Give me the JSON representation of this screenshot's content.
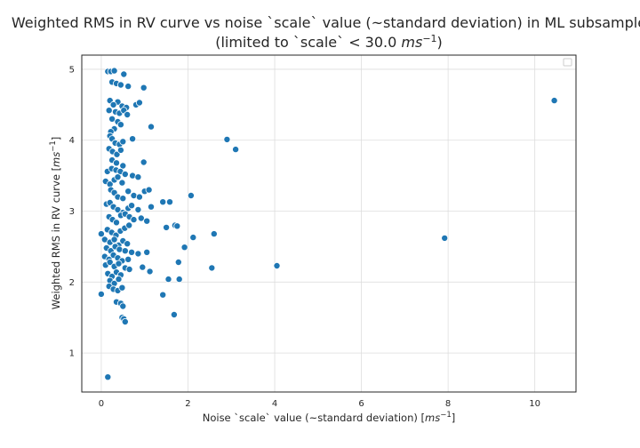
{
  "chart_data": {
    "type": "scatter",
    "title_line1": "Weighted RMS in RV curve vs noise `scale` value (~standard deviation) in ML subsample",
    "title_line2_prefix": "(limited to `scale` < 30.0 ",
    "unit": "ms",
    "unit_exp": "−1",
    "title_line2_suffix": ")",
    "xlabel": "Noise `scale` value (~standard deviation) [",
    "ylabel": "Weighted RMS in RV curve [",
    "label_close": "]",
    "xlim": [
      -0.45,
      10.95
    ],
    "ylim": [
      0.45,
      5.2
    ],
    "xticks": [
      0,
      2,
      4,
      6,
      8,
      10
    ],
    "yticks": [
      1,
      2,
      3,
      4,
      5
    ],
    "grid": true,
    "legend": "top-right (empty)",
    "color": "#1f77b4",
    "points": [
      [
        0.15,
        4.97
      ],
      [
        0.22,
        4.97
      ],
      [
        0.3,
        4.98
      ],
      [
        0.52,
        4.93
      ],
      [
        0.25,
        4.82
      ],
      [
        0.35,
        4.8
      ],
      [
        0.45,
        4.78
      ],
      [
        0.62,
        4.76
      ],
      [
        0.98,
        4.74
      ],
      [
        0.2,
        4.56
      ],
      [
        0.38,
        4.54
      ],
      [
        0.28,
        4.5
      ],
      [
        0.48,
        4.48
      ],
      [
        0.58,
        4.46
      ],
      [
        0.8,
        4.5
      ],
      [
        0.88,
        4.53
      ],
      [
        0.18,
        4.42
      ],
      [
        0.33,
        4.4
      ],
      [
        0.42,
        4.38
      ],
      [
        0.52,
        4.42
      ],
      [
        0.6,
        4.36
      ],
      [
        0.25,
        4.3
      ],
      [
        0.38,
        4.26
      ],
      [
        0.45,
        4.22
      ],
      [
        0.3,
        4.16
      ],
      [
        0.22,
        4.12
      ],
      [
        0.2,
        4.06
      ],
      [
        0.25,
        4.02
      ],
      [
        0.32,
        3.96
      ],
      [
        0.42,
        3.94
      ],
      [
        0.5,
        3.98
      ],
      [
        0.72,
        4.02
      ],
      [
        1.15,
        4.19
      ],
      [
        0.18,
        3.88
      ],
      [
        0.26,
        3.84
      ],
      [
        0.36,
        3.8
      ],
      [
        0.45,
        3.86
      ],
      [
        0.25,
        3.72
      ],
      [
        0.35,
        3.68
      ],
      [
        0.5,
        3.64
      ],
      [
        0.98,
        3.69
      ],
      [
        0.14,
        3.56
      ],
      [
        0.24,
        3.6
      ],
      [
        0.34,
        3.58
      ],
      [
        0.44,
        3.56
      ],
      [
        0.55,
        3.52
      ],
      [
        0.72,
        3.5
      ],
      [
        0.85,
        3.48
      ],
      [
        0.1,
        3.42
      ],
      [
        0.2,
        3.38
      ],
      [
        0.3,
        3.44
      ],
      [
        0.38,
        3.48
      ],
      [
        0.48,
        3.4
      ],
      [
        0.22,
        3.3
      ],
      [
        0.3,
        3.26
      ],
      [
        0.38,
        3.2
      ],
      [
        0.5,
        3.18
      ],
      [
        0.62,
        3.28
      ],
      [
        0.75,
        3.22
      ],
      [
        0.88,
        3.2
      ],
      [
        1.0,
        3.28
      ],
      [
        1.1,
        3.3
      ],
      [
        2.07,
        3.22
      ],
      [
        0.12,
        3.1
      ],
      [
        0.2,
        3.12
      ],
      [
        0.28,
        3.06
      ],
      [
        0.38,
        3.02
      ],
      [
        0.5,
        2.98
      ],
      [
        0.62,
        3.04
      ],
      [
        0.7,
        3.08
      ],
      [
        0.85,
        3.02
      ],
      [
        1.15,
        3.06
      ],
      [
        1.42,
        3.13
      ],
      [
        1.58,
        3.13
      ],
      [
        0.18,
        2.92
      ],
      [
        0.26,
        2.88
      ],
      [
        0.35,
        2.84
      ],
      [
        0.45,
        2.94
      ],
      [
        0.55,
        2.96
      ],
      [
        0.65,
        2.92
      ],
      [
        0.75,
        2.88
      ],
      [
        0.92,
        2.9
      ],
      [
        1.05,
        2.86
      ],
      [
        1.5,
        2.77
      ],
      [
        1.7,
        2.8
      ],
      [
        1.75,
        2.79
      ],
      [
        2.6,
        2.68
      ],
      [
        0.0,
        2.68
      ],
      [
        0.14,
        2.74
      ],
      [
        0.24,
        2.7
      ],
      [
        0.34,
        2.66
      ],
      [
        0.44,
        2.72
      ],
      [
        0.54,
        2.76
      ],
      [
        0.64,
        2.8
      ],
      [
        0.08,
        2.6
      ],
      [
        0.2,
        2.56
      ],
      [
        0.3,
        2.6
      ],
      [
        0.4,
        2.52
      ],
      [
        0.5,
        2.58
      ],
      [
        0.6,
        2.54
      ],
      [
        0.12,
        2.48
      ],
      [
        0.22,
        2.44
      ],
      [
        0.32,
        2.5
      ],
      [
        0.42,
        2.46
      ],
      [
        0.55,
        2.44
      ],
      [
        0.7,
        2.42
      ],
      [
        0.85,
        2.4
      ],
      [
        1.05,
        2.42
      ],
      [
        1.92,
        2.49
      ],
      [
        2.12,
        2.63
      ],
      [
        7.92,
        2.62
      ],
      [
        0.08,
        2.36
      ],
      [
        0.18,
        2.32
      ],
      [
        0.28,
        2.38
      ],
      [
        0.38,
        2.34
      ],
      [
        0.48,
        2.3
      ],
      [
        0.62,
        2.32
      ],
      [
        0.1,
        2.24
      ],
      [
        0.2,
        2.28
      ],
      [
        0.3,
        2.22
      ],
      [
        0.4,
        2.26
      ],
      [
        0.55,
        2.2
      ],
      [
        0.65,
        2.18
      ],
      [
        0.95,
        2.21
      ],
      [
        1.12,
        2.15
      ],
      [
        1.78,
        2.28
      ],
      [
        2.55,
        2.2
      ],
      [
        4.05,
        2.23
      ],
      [
        0.15,
        2.12
      ],
      [
        0.25,
        2.08
      ],
      [
        0.35,
        2.14
      ],
      [
        0.45,
        2.1
      ],
      [
        0.2,
        2.02
      ],
      [
        0.3,
        1.98
      ],
      [
        0.4,
        2.04
      ],
      [
        1.55,
        2.04
      ],
      [
        1.8,
        2.04
      ],
      [
        0.18,
        1.94
      ],
      [
        0.28,
        1.9
      ],
      [
        0.38,
        1.88
      ],
      [
        0.48,
        1.92
      ],
      [
        0.0,
        1.83
      ],
      [
        1.42,
        1.82
      ],
      [
        0.35,
        1.72
      ],
      [
        0.45,
        1.7
      ],
      [
        0.5,
        1.66
      ],
      [
        1.68,
        1.54
      ],
      [
        0.48,
        1.5
      ],
      [
        0.52,
        1.48
      ],
      [
        0.55,
        1.44
      ],
      [
        0.15,
        0.66
      ],
      [
        2.9,
        4.01
      ],
      [
        3.1,
        3.87
      ],
      [
        10.45,
        4.56
      ]
    ]
  }
}
